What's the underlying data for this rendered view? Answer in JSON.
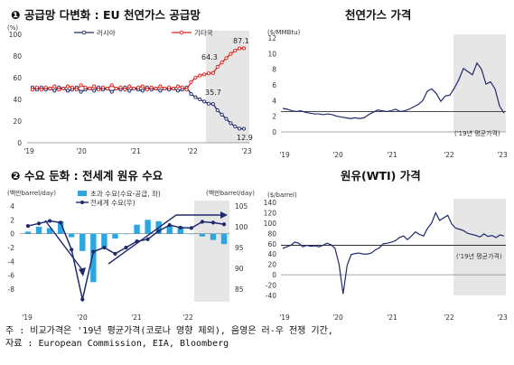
{
  "titles": {
    "p1": "❶ 공급망 다변화 : EU 천연가스 공급망",
    "p2": "천연가스 가격",
    "p3": "❷ 수요 둔화 : 전세계 원유 수요",
    "p4": "원유(WTI) 가격"
  },
  "notes": {
    "line1": "주 : 비교가격은 '19년 평균가격(코로나 영향 제외), 음영은 러-우 전쟁 기간,",
    "line2": "자료 : European Commission, EIA, Bloomberg"
  },
  "colors": {
    "navy": "#1f2a6e",
    "red": "#e0211b",
    "cyan": "#2aa7e0",
    "shade": "#e6e6e6",
    "avgline": "#333333"
  },
  "chart_data": [
    {
      "type": "line",
      "unit_label": "(%)",
      "ylim": [
        0,
        100
      ],
      "yticks": [
        0,
        20,
        40,
        60,
        80,
        100
      ],
      "xticks": [
        "'19",
        "'20",
        "'21",
        "'22",
        "'23"
      ],
      "shaded": "'22 – '23 (러-우 전쟁)",
      "series": [
        {
          "name": "러시아",
          "color": "#1f2a6e",
          "values": [
            51,
            49,
            51,
            49,
            50,
            48,
            51,
            50,
            48,
            49,
            51,
            47,
            49,
            50,
            48,
            51,
            49,
            50,
            47,
            50,
            49,
            51,
            48,
            50,
            49,
            48,
            51,
            49,
            50,
            48,
            50,
            49,
            50,
            48,
            49,
            51,
            45,
            42,
            40,
            38,
            36,
            35.7,
            30,
            26,
            22,
            18,
            15,
            13,
            12.9
          ]
        },
        {
          "name": "기타국",
          "color": "#e0211b",
          "values": [
            49,
            51,
            49,
            51,
            50,
            52,
            49,
            50,
            52,
            51,
            49,
            53,
            51,
            50,
            52,
            49,
            51,
            50,
            53,
            50,
            51,
            49,
            52,
            50,
            51,
            52,
            49,
            51,
            50,
            52,
            50,
            51,
            50,
            52,
            51,
            49,
            56,
            60,
            62,
            63,
            64,
            64.3,
            70,
            74,
            78,
            82,
            85,
            87,
            87.1
          ]
        }
      ],
      "annotations": [
        "64.3",
        "35.7",
        "87.1",
        "12.9"
      ]
    },
    {
      "type": "line",
      "unit_label": "($/MMBtu)",
      "ylim": [
        0,
        12
      ],
      "yticks": [
        0,
        2,
        4,
        6,
        8,
        10,
        12
      ],
      "xticks": [
        "'19",
        "'20",
        "'21",
        "'22",
        "'23"
      ],
      "reference_value": 2.6,
      "reference_label": "('19년 평균가격)",
      "series": [
        {
          "name": "천연가스",
          "color": "#1f2a6e",
          "values": [
            3.0,
            2.9,
            2.7,
            2.6,
            2.7,
            2.5,
            2.4,
            2.3,
            2.3,
            2.2,
            2.3,
            2.2,
            2.0,
            1.9,
            1.8,
            1.7,
            1.8,
            1.7,
            1.8,
            2.2,
            2.5,
            2.8,
            2.7,
            2.6,
            2.7,
            2.9,
            2.6,
            2.7,
            2.9,
            3.2,
            3.5,
            4.0,
            5.2,
            5.5,
            4.9,
            3.9,
            4.6,
            4.7,
            5.6,
            6.7,
            8.1,
            7.7,
            7.3,
            8.8,
            8.0,
            6.1,
            6.4,
            5.5,
            3.3,
            2.4
          ]
        }
      ]
    },
    {
      "type": "bar",
      "unit_left": "(백만barrel/day)",
      "unit_right": "(백만barrel/day)",
      "ylim_left": [
        -8,
        4
      ],
      "yticks_left": [
        -8,
        -6,
        -4,
        -2,
        0,
        2,
        4
      ],
      "ylim_right": [
        85,
        105
      ],
      "yticks_right": [
        85,
        90,
        95,
        100,
        105
      ],
      "xticks": [
        "'19",
        "'20",
        "'21",
        "'22"
      ],
      "series": [
        {
          "name": "초과 수요(수요-공급, 좌)",
          "color": "#2aa7e0",
          "values": [
            0.3,
            1.0,
            0.8,
            1.8,
            -0.5,
            -2.5,
            -7.0,
            -2.0,
            -0.7,
            0.0,
            1.3,
            2.0,
            1.8,
            1.1,
            1.0,
            0.0,
            -0.4,
            -0.9,
            -1.5
          ]
        },
        {
          "name": "전세계 수요(우)",
          "color": "#1f2a6e",
          "values": [
            100.2,
            100.8,
            101.4,
            101.0,
            94.5,
            82.5,
            94.0,
            95.0,
            93.5,
            95.0,
            96.5,
            97.0,
            99.0,
            100.4,
            99.8,
            99.7,
            101.2,
            101.0,
            100.6
          ]
        }
      ]
    },
    {
      "type": "line",
      "unit_label": "($/barrel)",
      "ylim": [
        -40,
        140
      ],
      "yticks": [
        -40,
        -20,
        0,
        20,
        40,
        60,
        80,
        100,
        120,
        140
      ],
      "xticks": [
        "'19",
        "'20",
        "'21",
        "'22",
        "'23"
      ],
      "reference_value": 57,
      "reference_label": "('19년 평균가격)",
      "series": [
        {
          "name": "WTI",
          "color": "#1f2a6e",
          "values": [
            51,
            54,
            57,
            63,
            61,
            54,
            57,
            55,
            56,
            54,
            57,
            61,
            58,
            51,
            20,
            -37,
            18,
            39,
            41,
            42,
            40,
            40,
            42,
            48,
            52,
            60,
            61,
            63,
            66,
            72,
            75,
            68,
            75,
            83,
            78,
            75,
            90,
            100,
            120,
            105,
            110,
            115,
            98,
            90,
            88,
            85,
            80,
            78,
            76,
            73,
            79,
            74,
            76,
            72,
            77,
            75
          ]
        }
      ]
    }
  ]
}
